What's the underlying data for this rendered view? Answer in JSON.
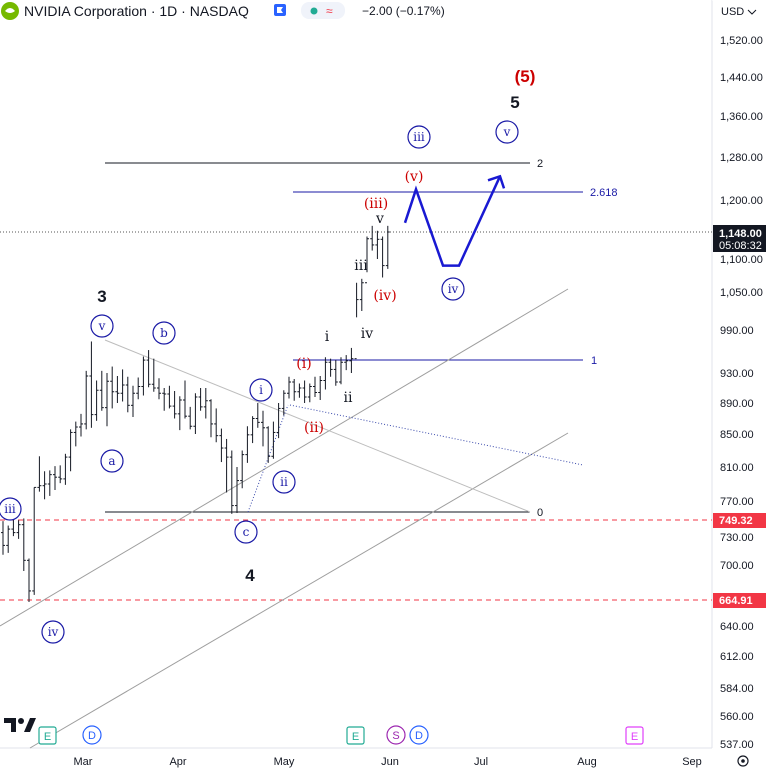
{
  "header": {
    "symbol_title": "NVIDIA Corporation · 1D · NASDAQ",
    "change": "−2.00 (−0.17%)",
    "change_color": "#131722",
    "status_dot_color": "#22ab94",
    "status_wave_color": "#f23645",
    "flag_color": "#2962ff",
    "logo_icon": "nvidia-logo-icon"
  },
  "price_axis": {
    "currency": "USD",
    "ticks": [
      "1,520.00",
      "1,440.00",
      "1,360.00",
      "1,280.00",
      "1,200.00",
      "1,148.00",
      "1,100.00",
      "1,050.00",
      "990.00",
      "930.00",
      "890.00",
      "850.00",
      "810.00",
      "770.00",
      "749.32",
      "730.00",
      "700.00",
      "664.91",
      "640.00",
      "612.00",
      "584.00",
      "560.00",
      "537.00"
    ],
    "last_price_label": "1,148.00",
    "countdown_label": "05:08:32",
    "level_749_label": "749.32",
    "level_664_label": "664.91",
    "level_color": "#f23645"
  },
  "time_axis": {
    "labels": [
      "Mar",
      "Apr",
      "May",
      "Jun",
      "Jul",
      "Aug",
      "Sep"
    ],
    "settings_icon": "gear-icon"
  },
  "event_markers": [
    {
      "letter": "E",
      "kind": "earnings",
      "color": "#22ab94"
    },
    {
      "letter": "D",
      "kind": "dividend",
      "color": "#2962ff"
    },
    {
      "letter": "E",
      "kind": "earnings",
      "color": "#22ab94"
    },
    {
      "letter": "S",
      "kind": "split",
      "color": "#9c27b0"
    },
    {
      "letter": "D",
      "kind": "dividend",
      "color": "#2962ff"
    },
    {
      "letter": "E",
      "kind": "earnings-upcoming",
      "color": "#e040fb"
    }
  ],
  "fib_levels": [
    {
      "label": "2",
      "color": "#131722"
    },
    {
      "label": "2.618",
      "color": "#1a1aa6"
    },
    {
      "label": "1",
      "color": "#1a1aa6"
    },
    {
      "label": "0",
      "color": "#131722"
    }
  ],
  "wave_labels": {
    "black": [
      "(5)",
      "5",
      "3",
      "4",
      "i",
      "ii",
      "iii",
      "iv",
      "v"
    ],
    "blue_circled": [
      "iii",
      "v",
      "iv",
      "v",
      "b",
      "a",
      "c",
      "i",
      "ii",
      "iv",
      "iii"
    ],
    "red": [
      "(5)",
      "(v)",
      "(iii)",
      "(iv)",
      "(i)",
      "(ii)"
    ],
    "colors": {
      "black": "#131722",
      "blue": "#1a1aa6",
      "red": "#cc0000"
    }
  },
  "watermark": "TradingView",
  "chart_data": {
    "type": "candlestick-ohlc-bars",
    "symbol": "NVDA",
    "exchange": "NASDAQ",
    "interval": "1D",
    "y_range": [
      537,
      1520
    ],
    "x_range": [
      "2024-02-08",
      "2024-09-10"
    ],
    "x_labels": [
      "Mar",
      "Apr",
      "May",
      "Jun",
      "Jul",
      "Aug",
      "Sep"
    ],
    "last_price": 1148.0,
    "horizontal_levels": [
      749.32,
      664.91
    ],
    "bars": [
      [
        735,
        748,
        711,
        721
      ],
      [
        721,
        743,
        713,
        739
      ],
      [
        739,
        752,
        731,
        735
      ],
      [
        735,
        749,
        728,
        744
      ],
      [
        744,
        751,
        694,
        705
      ],
      [
        705,
        707,
        663,
        674
      ],
      [
        674,
        786,
        670,
        786
      ],
      [
        786,
        823,
        781,
        788
      ],
      [
        788,
        805,
        772,
        790
      ],
      [
        790,
        806,
        776,
        801
      ],
      [
        801,
        811,
        783,
        798
      ],
      [
        798,
        812,
        791,
        796
      ],
      [
        796,
        826,
        789,
        822
      ],
      [
        822,
        856,
        805,
        852
      ],
      [
        852,
        866,
        835,
        859
      ],
      [
        859,
        876,
        847,
        863
      ],
      [
        863,
        933,
        856,
        926
      ],
      [
        926,
        974,
        858,
        875
      ],
      [
        875,
        920,
        867,
        907
      ],
      [
        907,
        933,
        880,
        884
      ],
      [
        884,
        930,
        860,
        919
      ],
      [
        919,
        939,
        883,
        905
      ],
      [
        905,
        926,
        890,
        903
      ],
      [
        903,
        935,
        892,
        914
      ],
      [
        914,
        925,
        878,
        887
      ],
      [
        887,
        913,
        872,
        903
      ],
      [
        903,
        924,
        895,
        912
      ],
      [
        912,
        953,
        900,
        948
      ],
      [
        948,
        962,
        911,
        915
      ],
      [
        915,
        950,
        905,
        910
      ],
      [
        910,
        923,
        895,
        903
      ],
      [
        903,
        910,
        880,
        902
      ],
      [
        902,
        913,
        883,
        886
      ],
      [
        886,
        906,
        870,
        876
      ],
      [
        876,
        899,
        855,
        894
      ],
      [
        894,
        920,
        870,
        873
      ],
      [
        873,
        885,
        856,
        860
      ],
      [
        860,
        903,
        850,
        898
      ],
      [
        898,
        910,
        880,
        885
      ],
      [
        885,
        910,
        870,
        893
      ],
      [
        893,
        895,
        846,
        863
      ],
      [
        863,
        883,
        840,
        848
      ],
      [
        848,
        857,
        816,
        833
      ],
      [
        833,
        844,
        780,
        822
      ],
      [
        822,
        830,
        756,
        765
      ],
      [
        765,
        810,
        757,
        794
      ],
      [
        794,
        830,
        785,
        825
      ],
      [
        825,
        860,
        815,
        849
      ],
      [
        849,
        873,
        839,
        870
      ],
      [
        870,
        890,
        858,
        865
      ],
      [
        865,
        880,
        835,
        858
      ],
      [
        858,
        860,
        815,
        823
      ],
      [
        823,
        866,
        820,
        852
      ],
      [
        852,
        890,
        845,
        883
      ],
      [
        883,
        907,
        874,
        903
      ],
      [
        903,
        925,
        896,
        918
      ],
      [
        918,
        922,
        893,
        905
      ],
      [
        905,
        916,
        897,
        910
      ],
      [
        910,
        920,
        890,
        898
      ],
      [
        898,
        916,
        891,
        912
      ],
      [
        912,
        925,
        898,
        904
      ],
      [
        904,
        926,
        894,
        920
      ],
      [
        920,
        952,
        908,
        945
      ],
      [
        945,
        950,
        925,
        935
      ],
      [
        935,
        948,
        913,
        918
      ],
      [
        918,
        952,
        915,
        945
      ],
      [
        945,
        955,
        934,
        947
      ],
      [
        947,
        965,
        930,
        950
      ],
      [
        950,
        1064,
        1010,
        1038
      ],
      [
        1038,
        1070,
        1020,
        1064
      ],
      [
        1064,
        1140,
        1080,
        1136
      ],
      [
        1136,
        1158,
        1115,
        1125
      ],
      [
        1125,
        1150,
        1100,
        1135
      ],
      [
        1135,
        1140,
        1072,
        1090
      ],
      [
        1090,
        1158,
        1085,
        1148
      ]
    ],
    "projection_path": [
      1163,
      1220,
      1090,
      1090,
      1244
    ]
  }
}
